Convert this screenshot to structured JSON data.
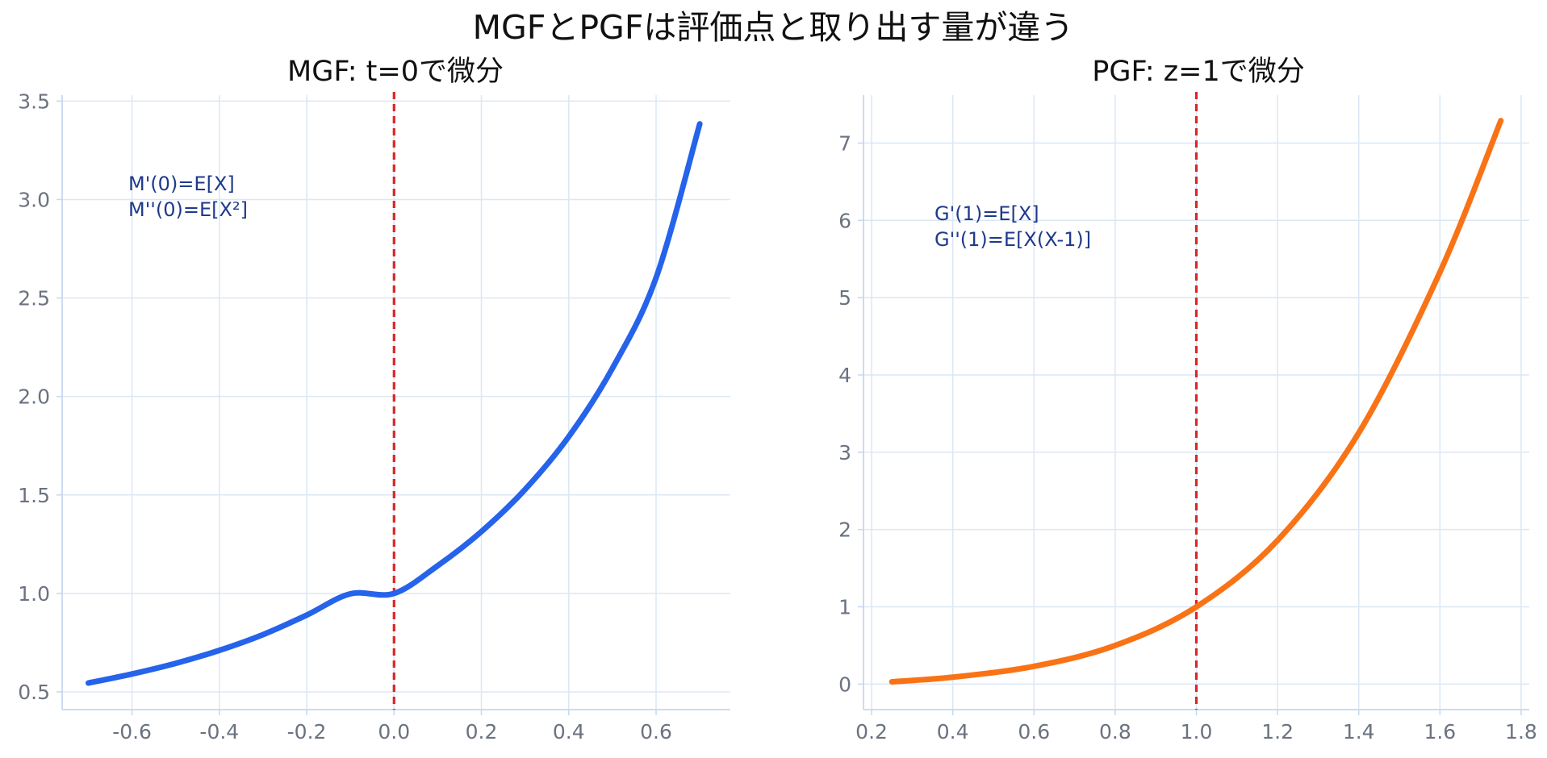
{
  "figure": {
    "title": "MGFとPGFは評価点と取り出す量が違う"
  },
  "chart_data": [
    {
      "type": "line",
      "title": "MGF: t=0で微分",
      "xlabel": "",
      "ylabel": "",
      "xlim": [
        -0.76,
        0.77
      ],
      "ylim": [
        0.41,
        3.53
      ],
      "xticks": [
        -0.6,
        -0.4,
        -0.2,
        0.0,
        0.2,
        0.4,
        0.6
      ],
      "xtick_labels": [
        "-0.6",
        "-0.4",
        "-0.2",
        "0.0",
        "0.2",
        "0.4",
        "0.6"
      ],
      "yticks": [
        0.5,
        1.0,
        1.5,
        2.0,
        2.5,
        3.0,
        3.5
      ],
      "ytick_labels": [
        "0.5",
        "1.0",
        "1.5",
        "2.0",
        "2.5",
        "3.0",
        "3.5"
      ],
      "grid": true,
      "series": [
        {
          "color": "#2563eb",
          "x": [
            -0.7,
            -0.6,
            -0.5,
            -0.4,
            -0.3,
            -0.2,
            -0.1,
            0.0,
            0.1,
            0.2,
            0.3,
            0.4,
            0.5,
            0.6,
            0.7
          ],
          "y": [
            0.545,
            0.591,
            0.645,
            0.711,
            0.791,
            0.89,
            0.998,
            1.0,
            1.141,
            1.314,
            1.528,
            1.796,
            2.143,
            2.603,
            3.384
          ]
        }
      ],
      "vline": {
        "x": 0.0,
        "color": "#dc2626",
        "style": "dashed"
      },
      "annotation": [
        "M'(0)=E[X]",
        "M''(0)=E[X²]"
      ]
    },
    {
      "type": "line",
      "title": "PGF: z=1で微分",
      "xlabel": "",
      "ylabel": "",
      "xlim": [
        0.18,
        1.82
      ],
      "ylim": [
        -0.33,
        7.62
      ],
      "xticks": [
        0.2,
        0.4,
        0.6,
        0.8,
        1.0,
        1.2,
        1.4,
        1.6,
        1.8
      ],
      "xtick_labels": [
        "0.2",
        "0.4",
        "0.6",
        "0.8",
        "1.0",
        "1.2",
        "1.4",
        "1.6",
        "1.8"
      ],
      "yticks": [
        0,
        1,
        2,
        3,
        4,
        5,
        6,
        7
      ],
      "ytick_labels": [
        "0",
        "1",
        "2",
        "3",
        "4",
        "5",
        "6",
        "7"
      ],
      "grid": true,
      "series": [
        {
          "color": "#f97316",
          "x": [
            0.25,
            0.4,
            0.6,
            0.8,
            1.0,
            1.2,
            1.4,
            1.6,
            1.75
          ],
          "y": [
            0.03,
            0.09,
            0.23,
            0.5,
            1.0,
            1.86,
            3.25,
            5.33,
            7.29
          ]
        }
      ],
      "vline": {
        "x": 1.0,
        "color": "#dc2626",
        "style": "dashed"
      },
      "annotation": [
        "G'(1)=E[X]",
        "G''(1)=E[X(X-1)]"
      ]
    }
  ]
}
